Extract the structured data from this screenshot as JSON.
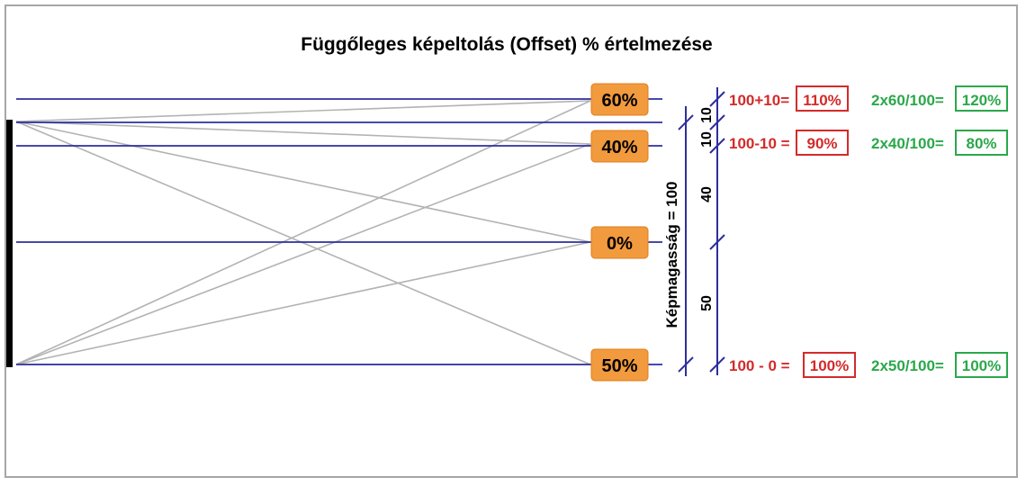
{
  "title": "Függőleges képeltolás (Offset) % értelmezése",
  "badges": {
    "b60": "60%",
    "b40": "40%",
    "b0": "0%",
    "b50": "50%"
  },
  "height_label": "Képmagasság = 100",
  "segments": {
    "s10a": "10",
    "s10b": "10",
    "s40": "40",
    "s50": "50"
  },
  "rows": [
    {
      "expr": "100+10=",
      "result": "110%",
      "expr2": "2x60/100=",
      "result2": "120%"
    },
    {
      "expr": "100-10 =",
      "result": "90%",
      "expr2": "2x40/100=",
      "result2": "80%"
    },
    {
      "expr": "100 - 0 =",
      "result": "100%",
      "expr2": "2x50/100=",
      "result2": "100%"
    }
  ],
  "colors": {
    "frame": "#a6a6a6",
    "guide_line": "#2e2e9e",
    "ray": "#b3b3b3",
    "badge_fill": "#f19a3e",
    "red": "#d42a2a",
    "green": "#2aa84a",
    "screen": "#000000"
  }
}
